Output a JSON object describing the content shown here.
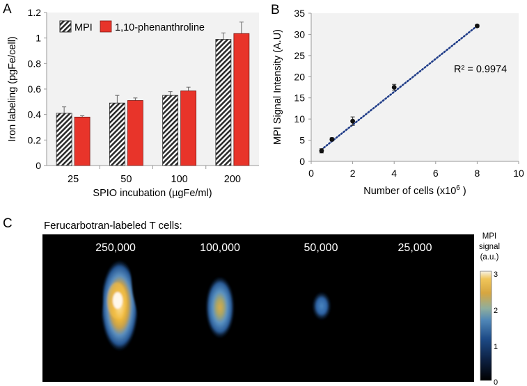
{
  "panels": {
    "a": {
      "letter": "A"
    },
    "b": {
      "letter": "B"
    },
    "c": {
      "letter": "C",
      "title": "Ferucarbotran-labeled T cells:"
    }
  },
  "chart_data": [
    {
      "type": "bar",
      "panel": "A",
      "categories": [
        "25",
        "50",
        "100",
        "200"
      ],
      "series": [
        {
          "name": "MPI",
          "values": [
            0.41,
            0.49,
            0.55,
            0.99
          ],
          "errors": [
            0.05,
            0.06,
            0.03,
            0.05
          ],
          "color": "#2a2a2a",
          "pattern": "hatched"
        },
        {
          "name": "1,10-phenanthroline",
          "values": [
            0.38,
            0.51,
            0.585,
            1.035
          ],
          "errors": [
            0.01,
            0.02,
            0.03,
            0.09
          ],
          "color": "#e8342a"
        }
      ],
      "xlabel": "SPIO incubation (µgFe/ml)",
      "ylabel": "Iron labeling (pgFe/cell)",
      "ylim": [
        0,
        1.2
      ],
      "yticks": [
        "0",
        "0.2",
        "0.4",
        "0.6",
        "0.8",
        "1",
        "1.2"
      ],
      "legend": "top-left"
    },
    {
      "type": "scatter",
      "panel": "B",
      "x": [
        0.5,
        1,
        2,
        4,
        8
      ],
      "y": [
        2.5,
        5.2,
        9.5,
        17.5,
        32
      ],
      "errors": [
        0.5,
        0.4,
        1.0,
        0.7,
        0.3
      ],
      "trendline": {
        "style": "dotted",
        "color": "#1f3c88",
        "from": [
          0.5,
          2.8
        ],
        "to": [
          8,
          32
        ],
        "r2_label": "R² = 0.9974"
      },
      "xlabel": "Number of cells (x10",
      "xlabel_sup": "6",
      "xlabel_suffix": " )",
      "ylabel": "MPI Signal Intensity (A.U)",
      "xlim": [
        0,
        10
      ],
      "ylim": [
        0,
        35
      ],
      "xticks": [
        "0",
        "2",
        "4",
        "6",
        "8",
        "10"
      ],
      "yticks": [
        "0",
        "5",
        "10",
        "15",
        "20",
        "25",
        "30",
        "35"
      ],
      "grid": false,
      "background": "#f2f2f2"
    },
    {
      "type": "heatmap",
      "panel": "C",
      "labels": [
        "250,000",
        "100,000",
        "50,000",
        "25,000"
      ],
      "colorbar": {
        "title": [
          "MPI",
          "signal",
          "(a.u.)"
        ],
        "min": "0",
        "mid1": "1",
        "mid2": "2",
        "max": "3"
      }
    }
  ]
}
